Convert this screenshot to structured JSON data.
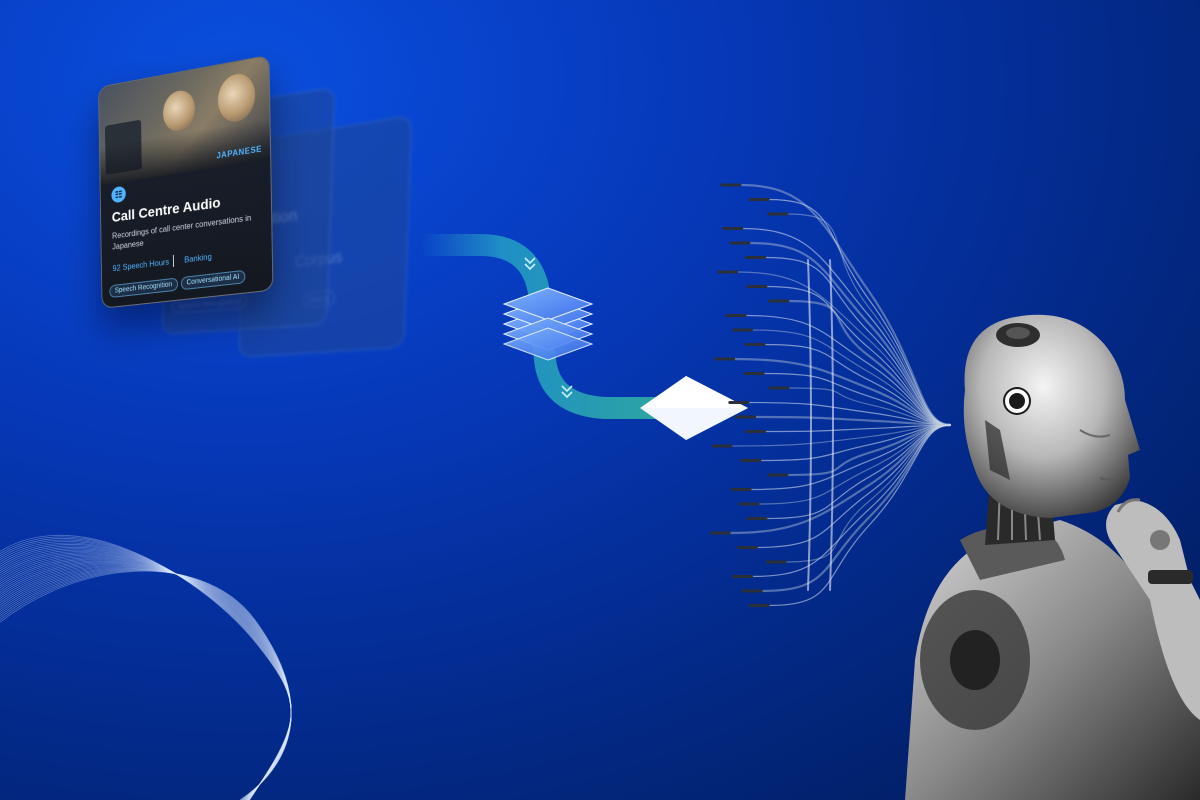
{
  "card": {
    "language": "JAPANESE",
    "title": "Call Centre Audio",
    "description": "Recordings of call center conversations in Japanese",
    "hours": "92 Speech Hours",
    "category": "Banking",
    "tags": [
      "Speech Recognition",
      "Conversational AI"
    ],
    "icon": "speech-bubble-icon"
  },
  "colors": {
    "accent": "#4fb4ff",
    "card_bg": "#141820",
    "flow_start": "#1e88c8",
    "flow_end": "#2fa8a0"
  }
}
